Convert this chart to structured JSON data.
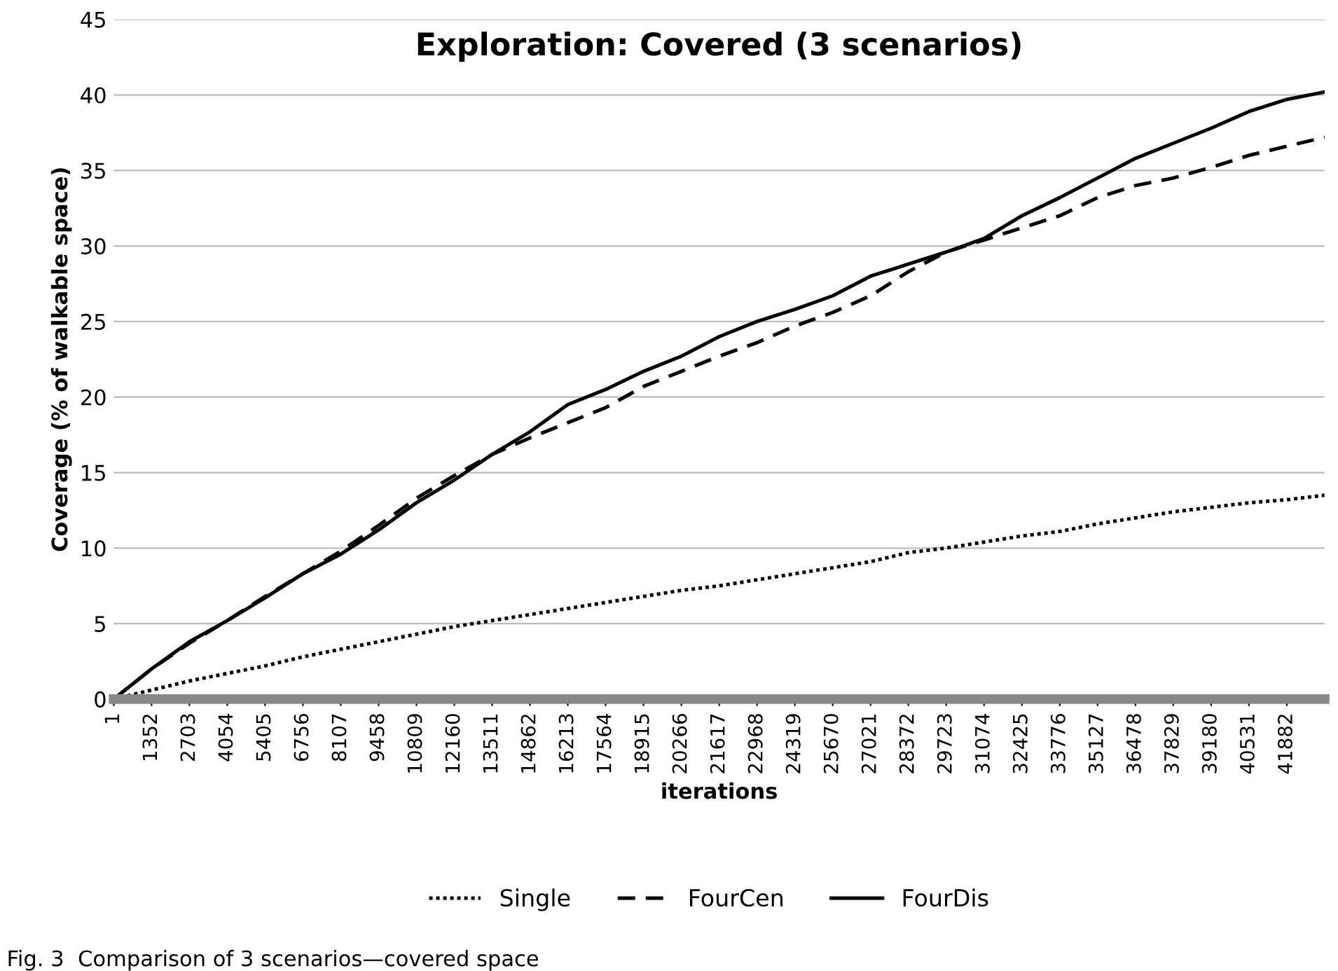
{
  "chart_data": {
    "type": "line",
    "title": "Exploration: Covered (3 scenarios)",
    "xlabel": "iterations",
    "ylabel": "Coverage (% of walkable space)",
    "x": [
      1,
      1352,
      2703,
      4054,
      5405,
      6756,
      8107,
      9458,
      10809,
      12160,
      13511,
      14862,
      16213,
      17564,
      18915,
      20266,
      21617,
      22968,
      24319,
      25670,
      27021,
      28372,
      29723,
      31074,
      32425,
      33776,
      35127,
      36478,
      37829,
      39180,
      40531,
      41882,
      43233
    ],
    "series": [
      {
        "name": "Single",
        "color": "#000000",
        "line_style": "dotted",
        "values": [
          0,
          0.6,
          1.2,
          1.7,
          2.2,
          2.8,
          3.3,
          3.8,
          4.3,
          4.8,
          5.2,
          5.6,
          6,
          6.4,
          6.8,
          7.2,
          7.5,
          7.9,
          8.3,
          8.7,
          9.1,
          9.7,
          10,
          10.4,
          10.8,
          11.1,
          11.6,
          12,
          12.4,
          12.7,
          13,
          13.2,
          13.5
        ]
      },
      {
        "name": "FourCen",
        "color": "#000000",
        "line_style": "dashed",
        "values": [
          0,
          2,
          3.7,
          5.2,
          6.8,
          8.3,
          9.8,
          11.5,
          13.3,
          14.8,
          16.2,
          17.3,
          18.3,
          19.3,
          20.7,
          21.7,
          22.7,
          23.6,
          24.7,
          25.6,
          26.7,
          28.3,
          29.6,
          30.4,
          31.2,
          32,
          33.2,
          34,
          34.5,
          35.2,
          36,
          36.6,
          37.2
        ]
      },
      {
        "name": "FourDis",
        "color": "#000000",
        "line_style": "solid",
        "values": [
          0,
          2,
          3.8,
          5.2,
          6.7,
          8.3,
          9.6,
          11.2,
          13,
          14.5,
          16.2,
          17.7,
          19.5,
          20.5,
          21.7,
          22.7,
          24,
          25,
          25.8,
          26.7,
          28,
          28.8,
          29.6,
          30.5,
          32,
          33.2,
          34.5,
          35.8,
          36.8,
          37.8,
          38.9,
          39.7,
          40.2
        ]
      }
    ],
    "xlim": [
      1,
      43233
    ],
    "xticks": [
      1,
      1352,
      2703,
      4054,
      5405,
      6756,
      8107,
      9458,
      10809,
      12160,
      13511,
      14862,
      16213,
      17564,
      18915,
      20266,
      21617,
      22968,
      24319,
      25670,
      27021,
      28372,
      29723,
      31074,
      32425,
      33776,
      35127,
      36478,
      37829,
      39180,
      40531,
      41882
    ],
    "ylim": [
      0,
      45
    ],
    "yticks": [
      0,
      5,
      10,
      15,
      20,
      25,
      30,
      35,
      40,
      45
    ],
    "grid": "y",
    "legend": "bottom",
    "annotations": [
      "Fig. 3  Comparison of 3 scenarios—covered space"
    ]
  }
}
